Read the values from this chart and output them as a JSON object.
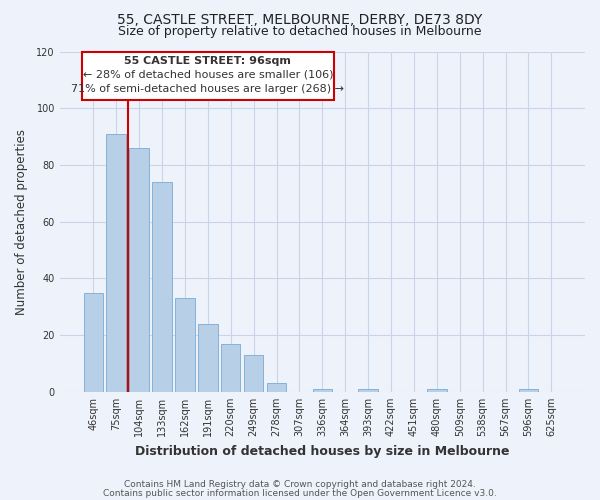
{
  "title": "55, CASTLE STREET, MELBOURNE, DERBY, DE73 8DY",
  "subtitle": "Size of property relative to detached houses in Melbourne",
  "xlabel": "Distribution of detached houses by size in Melbourne",
  "ylabel": "Number of detached properties",
  "bar_labels": [
    "46sqm",
    "75sqm",
    "104sqm",
    "133sqm",
    "162sqm",
    "191sqm",
    "220sqm",
    "249sqm",
    "278sqm",
    "307sqm",
    "336sqm",
    "364sqm",
    "393sqm",
    "422sqm",
    "451sqm",
    "480sqm",
    "509sqm",
    "538sqm",
    "567sqm",
    "596sqm",
    "625sqm"
  ],
  "bar_heights": [
    35,
    91,
    86,
    74,
    33,
    24,
    17,
    13,
    3,
    0,
    1,
    0,
    1,
    0,
    0,
    1,
    0,
    0,
    0,
    1,
    0
  ],
  "bar_color": "#b8cfe8",
  "bar_edge_color": "#7aaad4",
  "grid_color": "#c8d4e8",
  "background_color": "#eef2fa",
  "plot_bg_color": "#eef2fa",
  "annotation_box_color": "#ffffff",
  "annotation_border_color": "#cc0000",
  "annotation_text_line1": "55 CASTLE STREET: 96sqm",
  "annotation_text_line2": "← 28% of detached houses are smaller (106)",
  "annotation_text_line3": "71% of semi-detached houses are larger (268) →",
  "vertical_line_color": "#cc0000",
  "ylim": [
    0,
    120
  ],
  "yticks": [
    0,
    20,
    40,
    60,
    80,
    100,
    120
  ],
  "footer_line1": "Contains HM Land Registry data © Crown copyright and database right 2024.",
  "footer_line2": "Contains public sector information licensed under the Open Government Licence v3.0.",
  "title_fontsize": 10,
  "subtitle_fontsize": 9,
  "xlabel_fontsize": 9,
  "ylabel_fontsize": 8.5,
  "tick_fontsize": 7,
  "annotation_fontsize": 8,
  "footer_fontsize": 6.5
}
